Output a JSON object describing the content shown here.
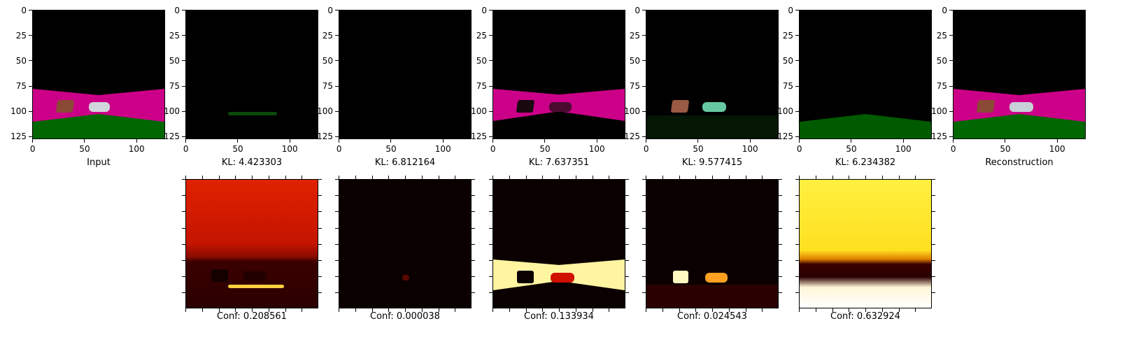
{
  "axis": {
    "y_ticks": [
      "0",
      "25",
      "50",
      "75",
      "100",
      "125"
    ],
    "x_ticks": [
      "0",
      "50",
      "100"
    ]
  },
  "top_row": [
    {
      "caption": "Input"
    },
    {
      "caption": "KL: 4.423303"
    },
    {
      "caption": "KL: 6.812164"
    },
    {
      "caption": "KL: 7.637351"
    },
    {
      "caption": "KL: 9.577415"
    },
    {
      "caption": "KL: 6.234382"
    },
    {
      "caption": "Reconstruction"
    }
  ],
  "bottom_row": [
    {
      "caption": "Conf: 0.208561"
    },
    {
      "caption": "Conf: 0.000038"
    },
    {
      "caption": "Conf: 0.133934"
    },
    {
      "caption": "Conf: 0.024543"
    },
    {
      "caption": "Conf: 0.632924"
    }
  ],
  "colors": {
    "road": "#cc0088",
    "grass": "#006600",
    "box": "#8b4a36",
    "car": "#c8d0d8"
  }
}
